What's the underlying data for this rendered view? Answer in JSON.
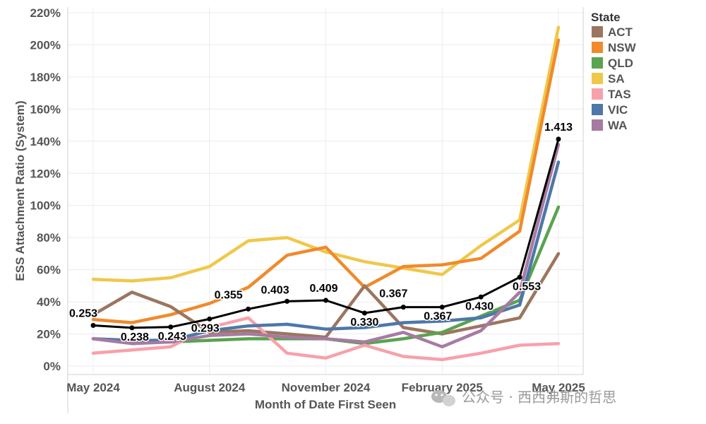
{
  "chart_data": {
    "type": "line",
    "xlabel": "Month of Date First Seen",
    "ylabel": "ESS Attachment Ratio (System)",
    "x": [
      "2024-05",
      "2024-06",
      "2024-07",
      "2024-08",
      "2024-09",
      "2024-10",
      "2024-11",
      "2024-12",
      "2025-01",
      "2025-02",
      "2025-03",
      "2025-04",
      "2025-05"
    ],
    "x_tick_labels": [
      {
        "index": 0,
        "label": "May 2024"
      },
      {
        "index": 3,
        "label": "August 2024"
      },
      {
        "index": 6,
        "label": "November 2024"
      },
      {
        "index": 9,
        "label": "February 2025"
      },
      {
        "index": 12,
        "label": "May 2025"
      }
    ],
    "y_tick_labels": [
      "0%",
      "20%",
      "40%",
      "60%",
      "80%",
      "100%",
      "120%",
      "140%",
      "160%",
      "180%",
      "200%",
      "220%"
    ],
    "ylim": [
      0,
      2.2
    ],
    "legend": {
      "title": "State",
      "placement": "right",
      "items": [
        {
          "name": "ACT",
          "color": "#9c7560"
        },
        {
          "name": "NSW",
          "color": "#f08a2c"
        },
        {
          "name": "QLD",
          "color": "#5aa34f"
        },
        {
          "name": "SA",
          "color": "#efc84a"
        },
        {
          "name": "TAS",
          "color": "#f7a1ab"
        },
        {
          "name": "VIC",
          "color": "#4d78a8"
        },
        {
          "name": "WA",
          "color": "#a77aa3"
        }
      ]
    },
    "series": [
      {
        "name": "SA",
        "color": "#efc84a",
        "values": [
          0.54,
          0.53,
          0.55,
          0.62,
          0.78,
          0.8,
          0.71,
          0.65,
          0.61,
          0.57,
          0.75,
          0.91,
          2.11
        ]
      },
      {
        "name": "NSW",
        "color": "#f08a2c",
        "values": [
          0.29,
          0.27,
          0.32,
          0.39,
          0.49,
          0.69,
          0.74,
          0.49,
          0.62,
          0.63,
          0.67,
          0.84,
          2.03
        ]
      },
      {
        "name": "ACT",
        "color": "#9c7560",
        "values": [
          0.32,
          0.46,
          0.37,
          0.21,
          0.22,
          0.2,
          0.18,
          0.5,
          0.24,
          0.2,
          0.25,
          0.3,
          0.7
        ]
      },
      {
        "name": "QLD",
        "color": "#5aa34f",
        "values": [
          0.17,
          0.15,
          0.15,
          0.16,
          0.17,
          0.17,
          0.17,
          0.14,
          0.17,
          0.21,
          0.31,
          0.41,
          0.99
        ]
      },
      {
        "name": "TAS",
        "color": "#f7a1ab",
        "values": [
          0.08,
          0.1,
          0.12,
          0.24,
          0.3,
          0.08,
          0.05,
          0.13,
          0.06,
          0.04,
          0.08,
          0.13,
          0.14
        ]
      },
      {
        "name": "VIC",
        "color": "#4d78a8",
        "values": [
          0.17,
          0.16,
          0.16,
          0.22,
          0.25,
          0.26,
          0.23,
          0.24,
          0.27,
          0.28,
          0.3,
          0.38,
          1.27
        ]
      },
      {
        "name": "WA",
        "color": "#a77aa3",
        "values": [
          0.17,
          0.14,
          0.15,
          0.19,
          0.2,
          0.18,
          0.17,
          0.15,
          0.21,
          0.12,
          0.22,
          0.46,
          1.38
        ]
      },
      {
        "name": "",
        "color": "#000000",
        "markers": true,
        "values": [
          0.253,
          0.238,
          0.243,
          0.293,
          0.355,
          0.403,
          0.409,
          0.33,
          0.367,
          0.367,
          0.43,
          0.553,
          1.413
        ],
        "data_labels": [
          "0.253",
          "0.238",
          "0.243",
          "0.293",
          "0.355",
          "0.403",
          "0.409",
          "0.330",
          "0.367",
          "0.367",
          "0.430",
          "0.553",
          "1.413"
        ]
      }
    ]
  },
  "watermark": {
    "text": "公众号 · 西西弗斯的哲思"
  }
}
